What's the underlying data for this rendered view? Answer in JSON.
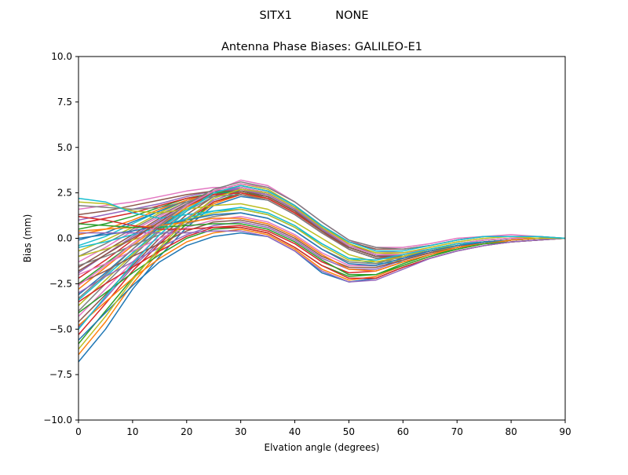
{
  "figure": {
    "suptitle": "SITX1            NONE"
  },
  "chart_data": {
    "type": "line",
    "title": "Antenna Phase Biases: GALILEO-E1",
    "xlabel": "Elvation angle (degrees)",
    "ylabel": "Bias (mm)",
    "xlim": [
      0,
      90
    ],
    "ylim": [
      -10,
      10
    ],
    "xticks": [
      0,
      10,
      20,
      30,
      40,
      50,
      60,
      70,
      80,
      90
    ],
    "xtick_labels": [
      "0",
      "10",
      "20",
      "30",
      "40",
      "50",
      "60",
      "70",
      "80",
      "90"
    ],
    "yticks": [
      -10,
      -7.5,
      -5,
      -2.5,
      0,
      2.5,
      5,
      7.5,
      10
    ],
    "ytick_labels": [
      "−10.0",
      "−7.5",
      "−5.0",
      "−2.5",
      "0.0",
      "2.5",
      "5.0",
      "7.5",
      "10.0"
    ],
    "grid": false,
    "legend": "none",
    "x": [
      0,
      5,
      10,
      15,
      20,
      25,
      30,
      35,
      40,
      45,
      50,
      55,
      60,
      65,
      70,
      75,
      80,
      85,
      90
    ],
    "colors": [
      "#1f77b4",
      "#ff7f0e",
      "#2ca02c",
      "#d62728",
      "#9467bd",
      "#8c564b",
      "#e377c2",
      "#7f7f7f",
      "#bcbd22",
      "#17becf"
    ],
    "series": [
      {
        "values": [
          -6.8,
          -5.0,
          -2.8,
          -1.0,
          0.6,
          1.8,
          2.3,
          2.1,
          1.3,
          0.3,
          -0.6,
          -1.1,
          -1.1,
          -0.8,
          -0.4,
          -0.2,
          -0.1,
          0.0,
          0.0
        ]
      },
      {
        "values": [
          -6.4,
          -4.6,
          -2.5,
          -0.7,
          0.8,
          1.9,
          2.4,
          2.2,
          1.4,
          0.4,
          -0.5,
          -1.0,
          -1.0,
          -0.7,
          -0.4,
          -0.2,
          -0.1,
          0.0,
          0.0
        ]
      },
      {
        "values": [
          -5.8,
          -4.0,
          -2.2,
          -0.6,
          0.8,
          2.0,
          2.5,
          2.3,
          1.5,
          0.5,
          -0.4,
          -0.9,
          -1.0,
          -0.7,
          -0.4,
          -0.2,
          -0.1,
          0.0,
          0.0
        ]
      },
      {
        "values": [
          -5.3,
          -3.6,
          -1.8,
          -0.3,
          1.0,
          2.0,
          2.4,
          2.1,
          1.3,
          0.3,
          -0.6,
          -1.1,
          -1.0,
          -0.7,
          -0.4,
          -0.2,
          -0.1,
          0.0,
          0.0
        ]
      },
      {
        "values": [
          -4.9,
          -3.3,
          -1.6,
          -0.2,
          1.1,
          2.1,
          2.6,
          2.4,
          1.6,
          0.5,
          -0.5,
          -1.0,
          -1.0,
          -0.7,
          -0.4,
          -0.2,
          -0.1,
          0.0,
          0.0
        ]
      },
      {
        "values": [
          -4.6,
          -3.1,
          -1.5,
          0.0,
          1.3,
          2.3,
          2.8,
          2.5,
          1.7,
          0.6,
          -0.3,
          -0.9,
          -0.9,
          -0.6,
          -0.3,
          -0.1,
          0.0,
          0.0,
          0.0
        ]
      },
      {
        "values": [
          -4.3,
          -2.8,
          -1.3,
          0.2,
          1.5,
          2.6,
          3.2,
          2.9,
          2.0,
          0.9,
          -0.1,
          -0.7,
          -0.8,
          -0.6,
          -0.3,
          -0.1,
          0.0,
          0.0,
          0.0
        ]
      },
      {
        "values": [
          -4.0,
          -2.5,
          -1.0,
          0.4,
          1.5,
          2.3,
          2.6,
          2.3,
          1.5,
          0.4,
          -0.5,
          -1.0,
          -1.0,
          -0.7,
          -0.4,
          -0.2,
          -0.1,
          0.0,
          0.0
        ]
      },
      {
        "values": [
          -3.7,
          -2.3,
          -0.9,
          0.5,
          1.7,
          2.6,
          3.0,
          2.7,
          1.8,
          0.7,
          -0.3,
          -0.8,
          -0.9,
          -0.6,
          -0.3,
          -0.1,
          0.0,
          0.0,
          0.0
        ]
      },
      {
        "values": [
          -3.4,
          -2.1,
          -0.8,
          0.5,
          1.6,
          2.4,
          2.8,
          2.5,
          1.7,
          0.6,
          -0.4,
          -0.9,
          -1.0,
          -0.7,
          -0.4,
          -0.2,
          -0.1,
          0.0,
          0.0
        ]
      },
      {
        "values": [
          -3.1,
          -1.9,
          -0.6,
          0.6,
          1.7,
          2.5,
          2.9,
          2.6,
          1.8,
          0.6,
          -0.4,
          -0.9,
          -1.0,
          -0.7,
          -0.4,
          -0.2,
          -0.1,
          0.0,
          0.0
        ]
      },
      {
        "values": [
          -2.8,
          -1.6,
          -0.4,
          0.7,
          1.7,
          2.4,
          2.7,
          2.4,
          1.6,
          0.5,
          -0.5,
          -1.0,
          -1.0,
          -0.7,
          -0.4,
          -0.2,
          -0.1,
          0.0,
          0.0
        ]
      },
      {
        "values": [
          -2.5,
          -1.4,
          -0.3,
          0.8,
          1.8,
          2.5,
          2.8,
          2.5,
          1.7,
          0.6,
          -0.4,
          -0.9,
          -1.0,
          -0.7,
          -0.4,
          -0.2,
          -0.1,
          0.0,
          0.0
        ]
      },
      {
        "values": [
          -2.2,
          -1.2,
          -0.1,
          0.9,
          1.8,
          2.4,
          2.7,
          2.4,
          1.6,
          0.5,
          -0.5,
          -1.0,
          -1.0,
          -0.7,
          -0.4,
          -0.2,
          -0.1,
          0.0,
          0.0
        ]
      },
      {
        "values": [
          -1.9,
          -0.9,
          0.1,
          1.0,
          1.9,
          2.5,
          2.8,
          2.5,
          1.7,
          0.6,
          -0.4,
          -0.9,
          -1.0,
          -0.7,
          -0.4,
          -0.2,
          -0.1,
          0.0,
          0.0
        ]
      },
      {
        "values": [
          -1.6,
          -0.7,
          0.2,
          1.1,
          1.9,
          2.4,
          2.6,
          2.3,
          1.5,
          0.5,
          -0.5,
          -1.0,
          -1.0,
          -0.7,
          -0.4,
          -0.2,
          -0.1,
          0.0,
          0.0
        ]
      },
      {
        "values": [
          -1.3,
          -0.5,
          0.4,
          1.2,
          2.0,
          2.5,
          2.7,
          2.4,
          1.6,
          0.5,
          -0.5,
          -1.0,
          -1.0,
          -0.7,
          -0.4,
          -0.2,
          -0.1,
          0.0,
          0.0
        ]
      },
      {
        "values": [
          -1.0,
          -0.3,
          0.5,
          1.3,
          2.0,
          2.4,
          2.6,
          2.3,
          1.5,
          0.5,
          -0.5,
          -1.0,
          -1.0,
          -0.7,
          -0.4,
          -0.2,
          -0.1,
          0.0,
          0.0
        ]
      },
      {
        "values": [
          -0.7,
          -0.1,
          0.6,
          1.4,
          2.1,
          2.5,
          2.7,
          2.4,
          1.6,
          0.5,
          -0.5,
          -1.0,
          -1.0,
          -0.7,
          -0.4,
          -0.2,
          -0.1,
          0.0,
          0.0
        ]
      },
      {
        "values": [
          -0.4,
          0.1,
          0.8,
          1.5,
          2.1,
          2.4,
          2.5,
          2.2,
          1.4,
          0.4,
          -0.6,
          -1.1,
          -1.0,
          -0.7,
          -0.4,
          -0.2,
          -0.1,
          0.0,
          0.0
        ]
      },
      {
        "values": [
          -0.1,
          0.3,
          0.9,
          1.5,
          2.1,
          2.4,
          2.6,
          2.3,
          1.5,
          0.4,
          -0.5,
          -1.0,
          -1.0,
          -0.7,
          -0.4,
          -0.2,
          -0.1,
          0.0,
          0.0
        ]
      },
      {
        "values": [
          0.2,
          0.5,
          1.0,
          1.6,
          2.1,
          2.4,
          2.5,
          2.2,
          1.4,
          0.4,
          -0.6,
          -1.1,
          -1.0,
          -0.7,
          -0.4,
          -0.2,
          -0.1,
          0.0,
          0.0
        ]
      },
      {
        "values": [
          0.5,
          0.8,
          1.2,
          1.7,
          2.2,
          2.5,
          2.6,
          2.3,
          1.5,
          0.4,
          -0.5,
          -1.0,
          -1.0,
          -0.7,
          -0.4,
          -0.2,
          -0.1,
          0.0,
          0.0
        ]
      },
      {
        "values": [
          0.8,
          1.1,
          1.4,
          1.8,
          2.2,
          2.4,
          2.5,
          2.2,
          1.4,
          0.4,
          -0.6,
          -1.1,
          -1.0,
          -0.7,
          -0.4,
          -0.2,
          -0.1,
          0.0,
          0.0
        ]
      },
      {
        "values": [
          1.0,
          1.3,
          1.6,
          1.9,
          2.3,
          2.6,
          2.7,
          2.4,
          1.6,
          0.5,
          -0.5,
          -1.0,
          -1.0,
          -0.7,
          -0.4,
          -0.2,
          -0.1,
          0.0,
          0.0
        ]
      },
      {
        "values": [
          1.3,
          1.5,
          1.8,
          2.1,
          2.4,
          2.6,
          2.6,
          2.3,
          1.5,
          0.4,
          -0.5,
          -1.0,
          -1.0,
          -0.7,
          -0.4,
          -0.2,
          -0.1,
          0.0,
          0.0
        ]
      },
      {
        "values": [
          1.6,
          1.8,
          2.0,
          2.3,
          2.6,
          2.8,
          2.8,
          2.5,
          1.7,
          0.6,
          -0.4,
          -0.9,
          -0.9,
          -0.6,
          -0.3,
          -0.1,
          0.0,
          0.0,
          0.0
        ]
      },
      {
        "values": [
          1.8,
          1.7,
          1.6,
          1.7,
          2.0,
          2.3,
          2.4,
          2.1,
          1.3,
          0.3,
          -0.6,
          -1.1,
          -1.1,
          -0.8,
          -0.4,
          -0.2,
          -0.1,
          0.0,
          0.0
        ]
      },
      {
        "values": [
          2.0,
          1.9,
          1.5,
          1.4,
          1.6,
          1.8,
          1.9,
          1.6,
          0.9,
          0.0,
          -0.9,
          -1.3,
          -1.2,
          -0.8,
          -0.4,
          -0.2,
          -0.1,
          0.0,
          0.0
        ]
      },
      {
        "values": [
          2.2,
          2.0,
          1.4,
          1.1,
          1.3,
          1.5,
          1.6,
          1.3,
          0.6,
          -0.3,
          -1.1,
          -1.4,
          -1.3,
          -0.9,
          -0.5,
          -0.2,
          -0.1,
          0.0,
          0.0
        ]
      },
      {
        "values": [
          -5.6,
          -4.1,
          -2.6,
          -1.3,
          -0.4,
          0.1,
          0.3,
          0.1,
          -0.7,
          -1.9,
          -2.4,
          -2.2,
          -1.6,
          -1.1,
          -0.7,
          -0.4,
          -0.2,
          -0.1,
          0.0
        ]
      },
      {
        "values": [
          -4.8,
          -3.5,
          -2.2,
          -1.1,
          -0.2,
          0.3,
          0.5,
          0.2,
          -0.6,
          -1.7,
          -2.3,
          -2.1,
          -1.5,
          -1.0,
          -0.6,
          -0.3,
          -0.2,
          -0.1,
          0.0
        ]
      },
      {
        "values": [
          -4.1,
          -3.0,
          -1.9,
          -0.9,
          0.0,
          0.5,
          0.6,
          0.3,
          -0.5,
          -1.5,
          -2.1,
          -2.0,
          -1.4,
          -0.9,
          -0.6,
          -0.3,
          -0.1,
          0.0,
          0.0
        ]
      },
      {
        "values": [
          -3.5,
          -2.5,
          -1.6,
          -0.7,
          0.1,
          0.6,
          0.7,
          0.4,
          -0.3,
          -1.3,
          -1.9,
          -1.8,
          -1.3,
          -0.9,
          -0.5,
          -0.3,
          -0.1,
          0.0,
          0.0
        ]
      },
      {
        "values": [
          -3.0,
          -2.1,
          -1.3,
          -0.5,
          0.2,
          0.7,
          0.9,
          0.6,
          -0.1,
          -1.1,
          -1.7,
          -1.7,
          -1.2,
          -0.8,
          -0.5,
          -0.2,
          -0.1,
          0.0,
          0.0
        ]
      },
      {
        "values": [
          -2.5,
          -1.8,
          -1.0,
          -0.3,
          0.4,
          0.9,
          1.0,
          0.7,
          0.0,
          -1.0,
          -1.6,
          -1.6,
          -1.2,
          -0.8,
          -0.5,
          -0.2,
          -0.1,
          0.0,
          0.0
        ]
      },
      {
        "values": [
          -2.0,
          -1.4,
          -0.7,
          0.0,
          0.6,
          1.0,
          1.2,
          0.9,
          0.2,
          -0.8,
          -1.5,
          -1.5,
          -1.1,
          -0.7,
          -0.4,
          -0.2,
          -0.1,
          0.0,
          0.0
        ]
      },
      {
        "values": [
          -1.5,
          -1.0,
          -0.4,
          0.2,
          0.8,
          1.2,
          1.4,
          1.1,
          0.4,
          -0.6,
          -1.3,
          -1.4,
          -1.0,
          -0.7,
          -0.4,
          -0.2,
          -0.1,
          0.0,
          0.0
        ]
      },
      {
        "values": [
          -1.0,
          -0.6,
          -0.1,
          0.4,
          1.0,
          1.4,
          1.6,
          1.3,
          0.6,
          -0.4,
          -1.2,
          -1.3,
          -1.0,
          -0.6,
          -0.4,
          -0.2,
          -0.1,
          0.0,
          0.0
        ]
      },
      {
        "values": [
          -0.5,
          -0.2,
          0.2,
          0.6,
          1.1,
          1.5,
          1.7,
          1.4,
          0.7,
          -0.3,
          -1.1,
          -1.2,
          -0.9,
          -0.6,
          -0.3,
          -0.2,
          -0.1,
          0.0,
          0.0
        ]
      },
      {
        "values": [
          0.0,
          0.2,
          0.4,
          0.7,
          1.0,
          1.3,
          1.4,
          1.1,
          0.4,
          -0.6,
          -1.4,
          -1.5,
          -1.1,
          -0.7,
          -0.4,
          -0.2,
          -0.1,
          0.0,
          0.0
        ]
      },
      {
        "values": [
          0.4,
          0.5,
          0.6,
          0.7,
          0.9,
          1.1,
          1.1,
          0.8,
          0.1,
          -0.9,
          -1.7,
          -1.8,
          -1.3,
          -0.9,
          -0.5,
          -0.3,
          -0.1,
          0.0,
          0.0
        ]
      },
      {
        "values": [
          0.8,
          0.7,
          0.6,
          0.6,
          0.7,
          0.8,
          0.8,
          0.5,
          -0.2,
          -1.2,
          -2.0,
          -2.0,
          -1.5,
          -1.0,
          -0.6,
          -0.3,
          -0.2,
          -0.1,
          0.0
        ]
      },
      {
        "values": [
          1.2,
          1.0,
          0.7,
          0.5,
          0.5,
          0.6,
          0.6,
          0.3,
          -0.5,
          -1.5,
          -2.2,
          -2.2,
          -1.6,
          -1.1,
          -0.7,
          -0.4,
          -0.2,
          -0.1,
          0.0
        ]
      },
      {
        "values": [
          0.3,
          0.3,
          0.3,
          0.3,
          0.3,
          0.4,
          0.4,
          0.1,
          -0.7,
          -1.8,
          -2.4,
          -2.3,
          -1.7,
          -1.1,
          -0.7,
          -0.4,
          -0.2,
          -0.1,
          0.0
        ]
      },
      {
        "values": [
          -1.8,
          -0.9,
          0.0,
          0.9,
          1.8,
          2.5,
          2.9,
          2.6,
          1.8,
          0.7,
          -0.2,
          -0.6,
          -0.6,
          -0.4,
          -0.1,
          0.1,
          0.1,
          0.1,
          0.0
        ]
      },
      {
        "values": [
          -2.6,
          -1.5,
          -0.3,
          0.8,
          1.8,
          2.6,
          3.0,
          2.8,
          2.0,
          0.9,
          -0.1,
          -0.5,
          -0.5,
          -0.3,
          0.0,
          0.1,
          0.2,
          0.1,
          0.0
        ]
      },
      {
        "values": [
          -3.3,
          -2.0,
          -0.6,
          0.7,
          1.9,
          2.7,
          3.1,
          2.8,
          2.0,
          0.9,
          -0.1,
          -0.5,
          -0.6,
          -0.4,
          -0.1,
          0.1,
          0.1,
          0.1,
          0.0
        ]
      },
      {
        "values": [
          -6.1,
          -4.3,
          -2.3,
          -0.5,
          1.0,
          2.2,
          2.7,
          2.5,
          1.7,
          0.6,
          -0.3,
          -0.8,
          -0.8,
          -0.5,
          -0.2,
          0.0,
          0.1,
          0.0,
          0.0
        ]
      },
      {
        "values": [
          -5.0,
          -3.2,
          -1.4,
          0.2,
          1.5,
          2.5,
          2.9,
          2.6,
          1.8,
          0.7,
          -0.2,
          -0.7,
          -0.7,
          -0.4,
          -0.1,
          0.1,
          0.1,
          0.1,
          0.0
        ]
      }
    ]
  }
}
